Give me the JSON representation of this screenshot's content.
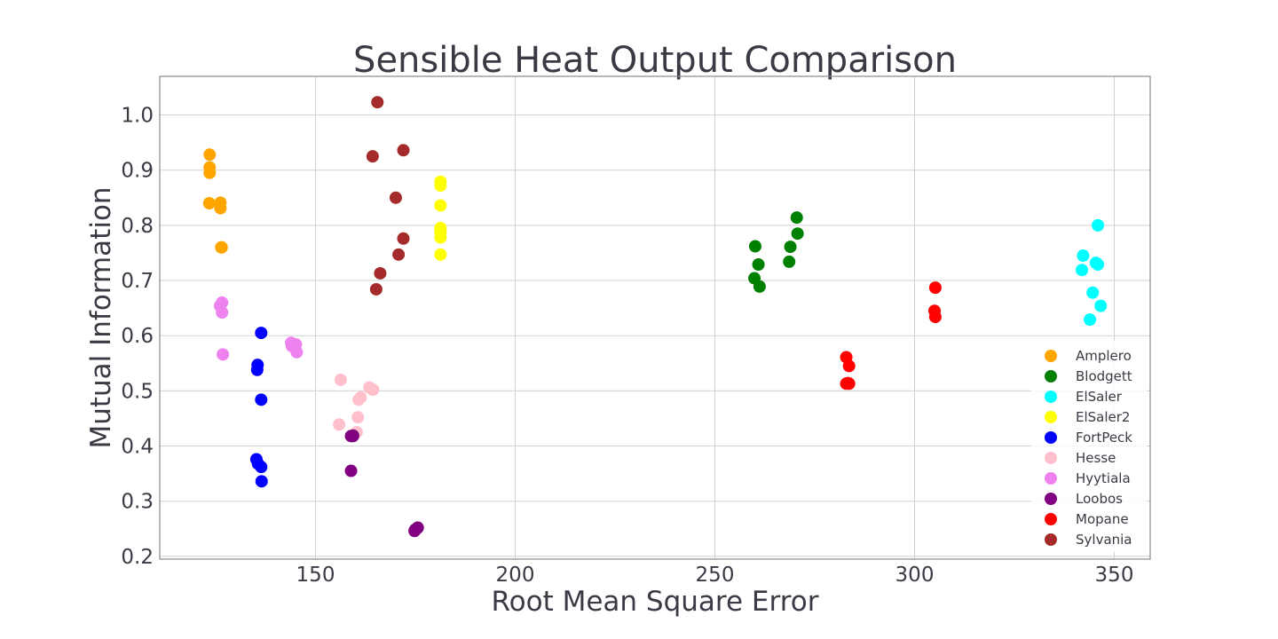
{
  "chart_data": {
    "type": "scatter",
    "title": "Sensible Heat Output Comparison",
    "xlabel": "Root Mean Square Error",
    "ylabel": "Mutual Information",
    "xlim": [
      111,
      359
    ],
    "ylim": [
      0.195,
      1.07
    ],
    "xticks": [
      150,
      200,
      250,
      300,
      350
    ],
    "yticks": [
      0.2,
      0.3,
      0.4,
      0.5,
      0.6,
      0.7,
      0.8,
      0.9,
      1.0
    ],
    "grid": true,
    "legend_position": "right",
    "series": [
      {
        "name": "Amplero",
        "color": "#ffa500",
        "x": [
          123.5,
          123.5,
          123.5,
          123.4,
          126.2,
          126.2,
          126.5,
          126.4
        ],
        "y": [
          0.928,
          0.905,
          0.895,
          0.84,
          0.841,
          0.831,
          0.76,
          0.76
        ]
      },
      {
        "name": "Blodgett",
        "color": "#008000",
        "x": [
          260.1,
          260.9,
          259.9,
          261.2,
          270.5,
          268.9,
          270.7,
          268.6
        ],
        "y": [
          0.762,
          0.729,
          0.704,
          0.689,
          0.814,
          0.761,
          0.785,
          0.734
        ]
      },
      {
        "name": "ElSaler",
        "color": "#00ffff",
        "x": [
          345.9,
          342.2,
          341.9,
          345.4,
          345.9,
          344.6,
          346.6,
          343.9
        ],
        "y": [
          0.8,
          0.745,
          0.719,
          0.732,
          0.729,
          0.678,
          0.654,
          0.629
        ]
      },
      {
        "name": "ElSaler2",
        "color": "#ffff00",
        "x": [
          181.3,
          181.3,
          181.3,
          181.3,
          181.3,
          181.3,
          181.3
        ],
        "y": [
          0.879,
          0.872,
          0.836,
          0.795,
          0.787,
          0.778,
          0.747
        ]
      },
      {
        "name": "FortPeck",
        "color": "#0000ff",
        "x": [
          136.4,
          135.5,
          135.4,
          136.4,
          135.2,
          135.6,
          136.4,
          136.5
        ],
        "y": [
          0.605,
          0.547,
          0.538,
          0.484,
          0.376,
          0.368,
          0.362,
          0.336
        ]
      },
      {
        "name": "Hesse",
        "color": "#ffc0cb",
        "x": [
          156.3,
          163.5,
          164.4,
          161.3,
          160.8,
          160.6,
          155.9,
          160.3
        ],
        "y": [
          0.52,
          0.506,
          0.502,
          0.488,
          0.484,
          0.452,
          0.439,
          0.425
        ]
      },
      {
        "name": "Hyytiala",
        "color": "#ee82ee",
        "x": [
          126.6,
          126.1,
          126.6,
          126.8,
          143.9,
          145.1,
          144.1,
          145.3
        ],
        "y": [
          0.66,
          0.654,
          0.642,
          0.566,
          0.587,
          0.584,
          0.581,
          0.57
        ]
      },
      {
        "name": "Loobos",
        "color": "#800080",
        "x": [
          159.4,
          158.9,
          159.4,
          158.9,
          175.6,
          174.9,
          174.8,
          175.3
        ],
        "y": [
          0.418,
          0.418,
          0.419,
          0.355,
          0.252,
          0.248,
          0.246,
          0.25
        ]
      },
      {
        "name": "Mopane",
        "color": "#ff0000",
        "x": [
          305.2,
          305.0,
          305.2,
          282.9,
          283.6,
          282.9,
          283.6,
          283.3
        ],
        "y": [
          0.687,
          0.645,
          0.634,
          0.561,
          0.545,
          0.513,
          0.513,
          0.514
        ]
      },
      {
        "name": "Sylvania",
        "color": "#a52a2a",
        "x": [
          165.5,
          164.3,
          172.0,
          170.1,
          172.0,
          170.8,
          166.2,
          165.2
        ],
        "y": [
          1.023,
          0.925,
          0.936,
          0.85,
          0.776,
          0.747,
          0.713,
          0.684
        ]
      }
    ]
  }
}
